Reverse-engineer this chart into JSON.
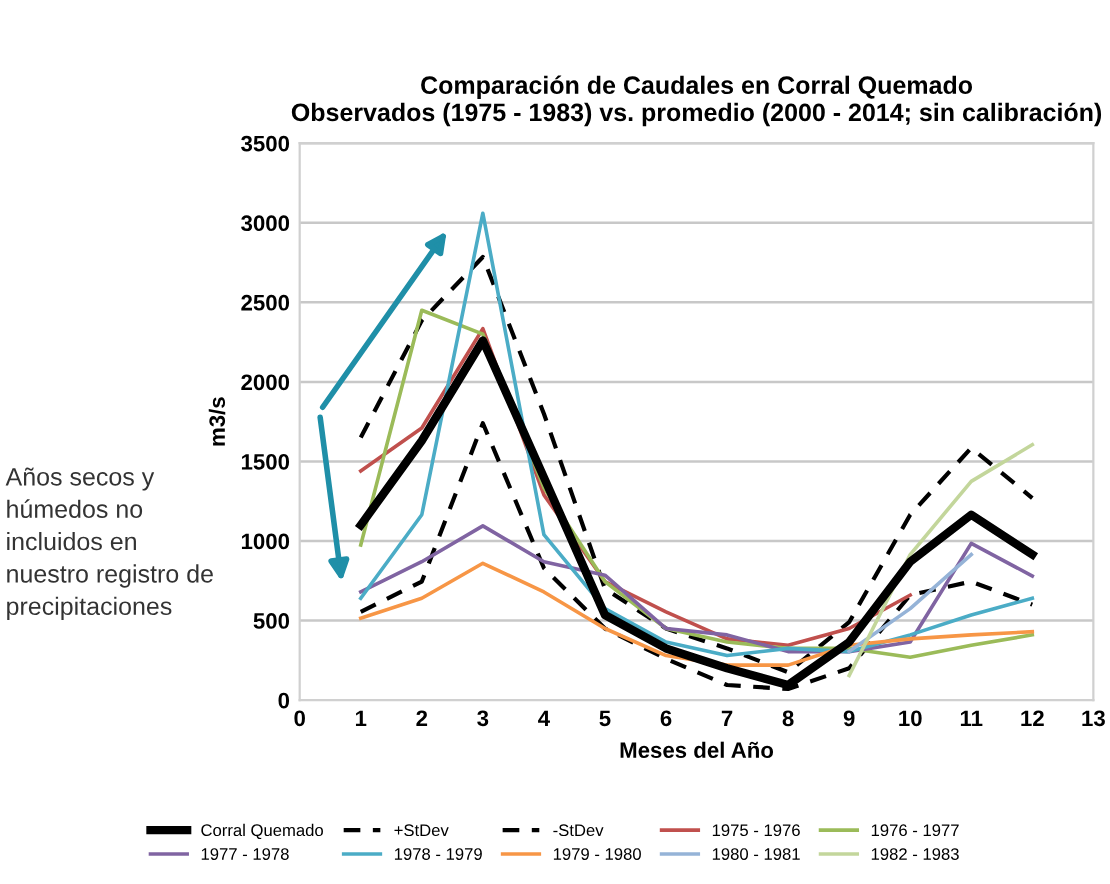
{
  "chart_data": {
    "type": "line",
    "title": "Comparación de Caudales en Corral Quemado\nObservados (1975 - 1983) vs. promedio (2000 - 2014; sin calibración)",
    "xlabel": "Meses del Año",
    "ylabel": "m3/s",
    "annotations": [
      "Años secos y\nhúmedos no\nincluidos en\nnuestro registro de\nprecipitaciones"
    ],
    "xlim": [
      0,
      13
    ],
    "xticks": [
      0,
      1,
      2,
      3,
      4,
      5,
      6,
      7,
      8,
      9,
      10,
      11,
      12,
      13
    ],
    "ylim": [
      0,
      3500
    ],
    "yticks": [
      0,
      500,
      1000,
      1500,
      2000,
      2500,
      3000,
      3500
    ],
    "grid": "y",
    "legend": "bottom",
    "marker": "none",
    "line_style": "solid",
    "series": [
      {
        "name": "Corral Quemado",
        "color": "#000000",
        "x": [
          1,
          2,
          3,
          4,
          5,
          6,
          7,
          8,
          9,
          10,
          11,
          12
        ],
        "values": [
          1100,
          1630,
          2260,
          1400,
          535,
          325,
          200,
          95,
          365,
          870,
          1165,
          915
        ]
      },
      {
        "name": "+StDev",
        "color": "#000000",
        "line_style": "dashed",
        "x": [
          1,
          2,
          3,
          4,
          5,
          6,
          7,
          8,
          9,
          10,
          11,
          12
        ],
        "values": [
          1650,
          2385,
          2785,
          1800,
          700,
          450,
          325,
          175,
          490,
          1165,
          1585,
          1270
        ]
      },
      {
        "name": "-StDev",
        "color": "#000000",
        "line_style": "dashed",
        "x": [
          1,
          2,
          3,
          4,
          5,
          6,
          7,
          8,
          9,
          10,
          11,
          12
        ],
        "values": [
          555,
          745,
          1740,
          830,
          450,
          260,
          95,
          70,
          200,
          660,
          745,
          600
        ]
      },
      {
        "name": "1975 - 1976",
        "color": "#c0504d",
        "x": [
          1,
          2,
          3,
          4,
          5,
          6,
          7,
          8,
          9,
          10
        ],
        "values": [
          1440,
          1710,
          2335,
          1290,
          745,
          555,
          385,
          345,
          450,
          660
        ]
      },
      {
        "name": "1976 - 1977",
        "color": "#9bbb59",
        "x": [
          1,
          2,
          3,
          4,
          5,
          6,
          7,
          8,
          9,
          10,
          11,
          12
        ],
        "values": [
          975,
          2450,
          2300,
          1335,
          745,
          450,
          365,
          325,
          325,
          270,
          345,
          410
        ]
      },
      {
        "name": "1977 - 1978",
        "color": "#8064a2",
        "x": [
          1,
          2,
          3,
          4,
          5,
          6,
          7,
          8,
          9,
          10,
          11,
          12
        ],
        "values": [
          680,
          870,
          1095,
          870,
          785,
          450,
          410,
          305,
          305,
          365,
          985,
          780
        ]
      },
      {
        "name": "1978 - 1979",
        "color": "#4bacc6",
        "x": [
          1,
          2,
          3,
          4,
          5,
          6,
          7,
          8,
          9,
          10,
          11,
          12
        ],
        "values": [
          640,
          1165,
          3060,
          1040,
          575,
          365,
          280,
          325,
          305,
          410,
          535,
          640
        ]
      },
      {
        "name": "1979 - 1980",
        "color": "#f79646",
        "x": [
          1,
          2,
          3,
          4,
          5,
          6,
          7,
          8,
          9,
          10,
          11,
          12
        ],
        "values": [
          515,
          640,
          860,
          680,
          450,
          280,
          220,
          220,
          345,
          385,
          410,
          430
        ]
      },
      {
        "name": "1980 - 1981",
        "color": "#95b3d7",
        "x": [
          9,
          10,
          11
        ],
        "values": [
          305,
          575,
          915
        ]
      },
      {
        "name": "1982 - 1983",
        "color": "#c3d69b",
        "x": [
          9,
          10,
          11,
          12
        ],
        "values": [
          155,
          915,
          1375,
          1605
        ]
      }
    ]
  }
}
